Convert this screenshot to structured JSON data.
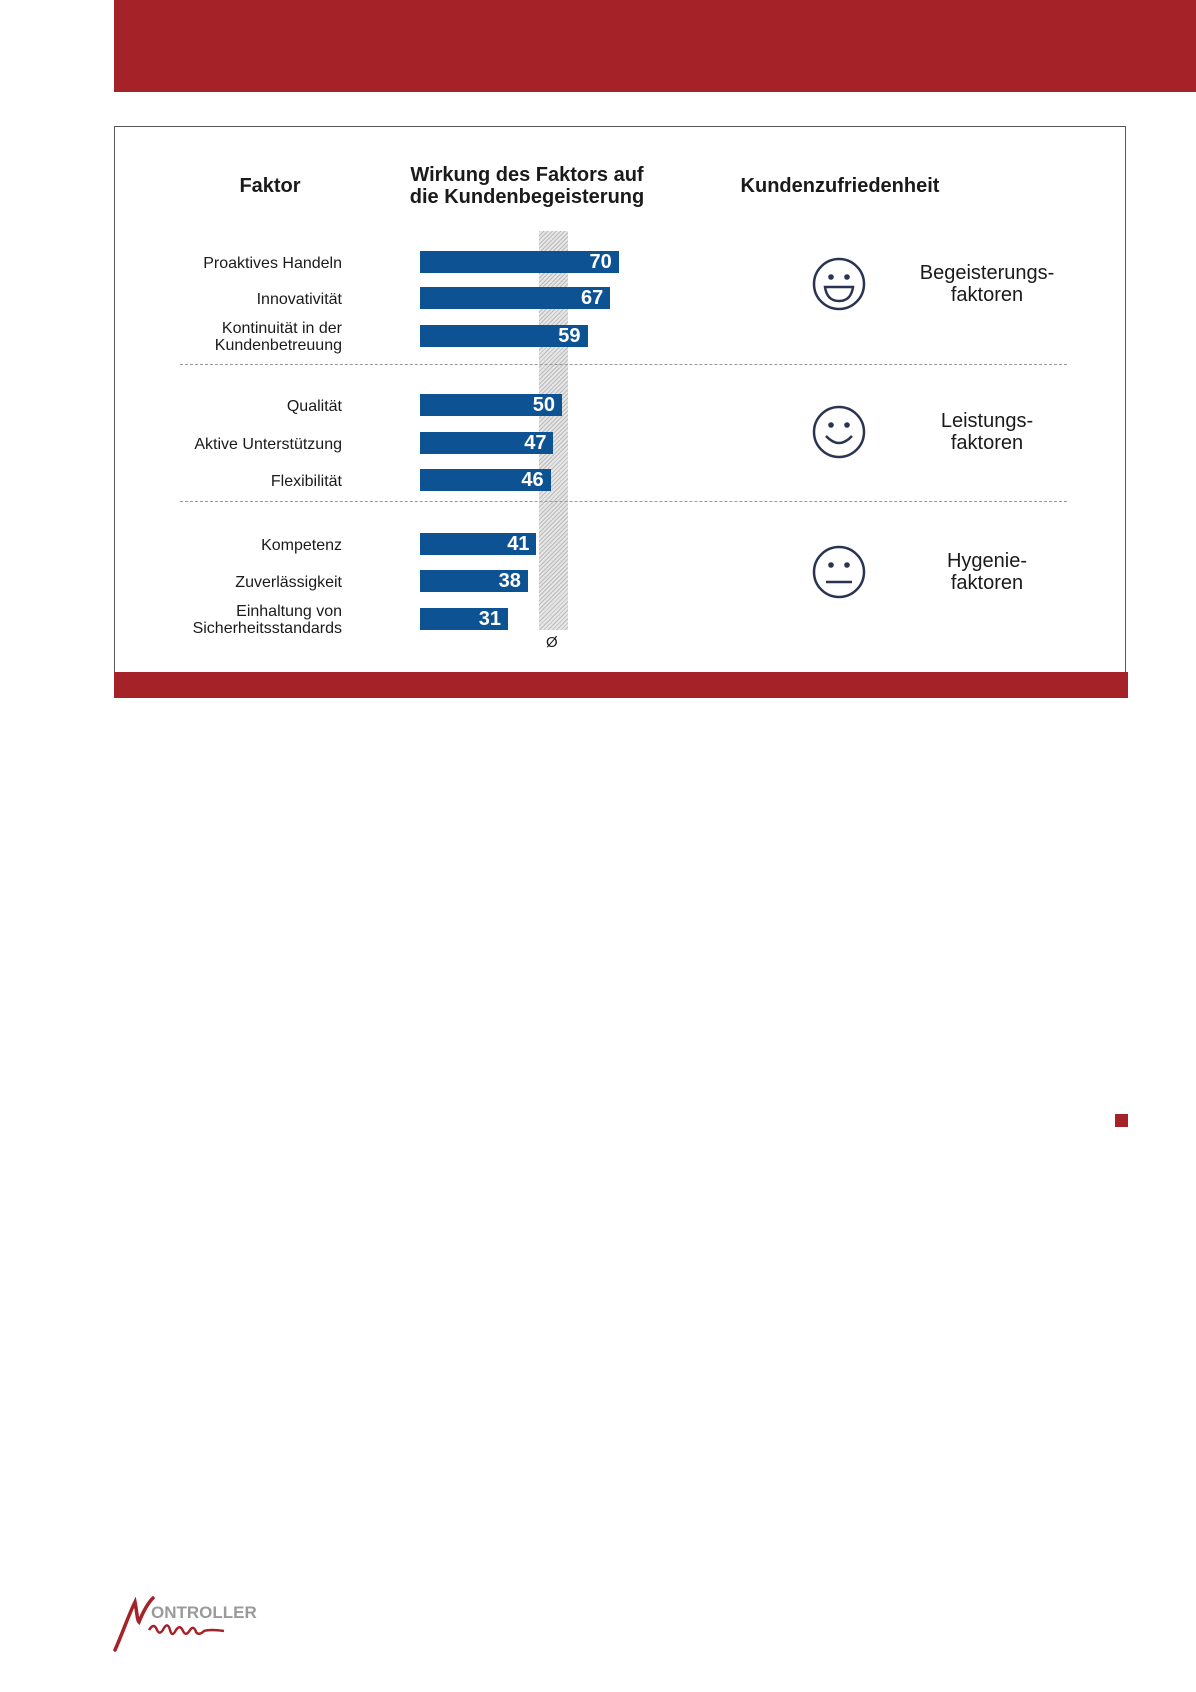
{
  "colors": {
    "brand": "#a42228",
    "bar": "#0d5394",
    "face": "#2a3352"
  },
  "chart_data": {
    "type": "bar",
    "orientation": "horizontal",
    "headers": {
      "factor": "Faktor",
      "effect_line1": "Wirkung des Faktors auf",
      "effect_line2": "die Kundenbegeisterung",
      "satisfaction": "Kundenzufriedenheit"
    },
    "categories": [
      [
        "Proaktives Handeln"
      ],
      [
        "Innovativität"
      ],
      [
        "Kontinuität in der",
        "Kundenbetreuung"
      ],
      [
        "Qualität"
      ],
      [
        "Aktive Unterstützung"
      ],
      [
        "Flexibilität"
      ],
      [
        "Kompetenz"
      ],
      [
        "Zuverlässigkeit"
      ],
      [
        "Einhaltung von",
        "Sicherheitsstandards"
      ]
    ],
    "values": [
      70,
      67,
      59,
      50,
      47,
      46,
      41,
      38,
      31
    ],
    "average_label": "Ø",
    "average_band": [
      47,
      57
    ],
    "groups": [
      {
        "line1": "Begeisterungs-",
        "line2": "faktoren",
        "icon": "big-smile-face-icon"
      },
      {
        "line1": "Leistungs-",
        "line2": "faktoren",
        "icon": "smile-face-icon"
      },
      {
        "line1": "Hygenie-",
        "line2": "faktoren",
        "icon": "neutral-face-icon"
      }
    ]
  },
  "logo": {
    "text": "CONTROLLER Magazin"
  }
}
